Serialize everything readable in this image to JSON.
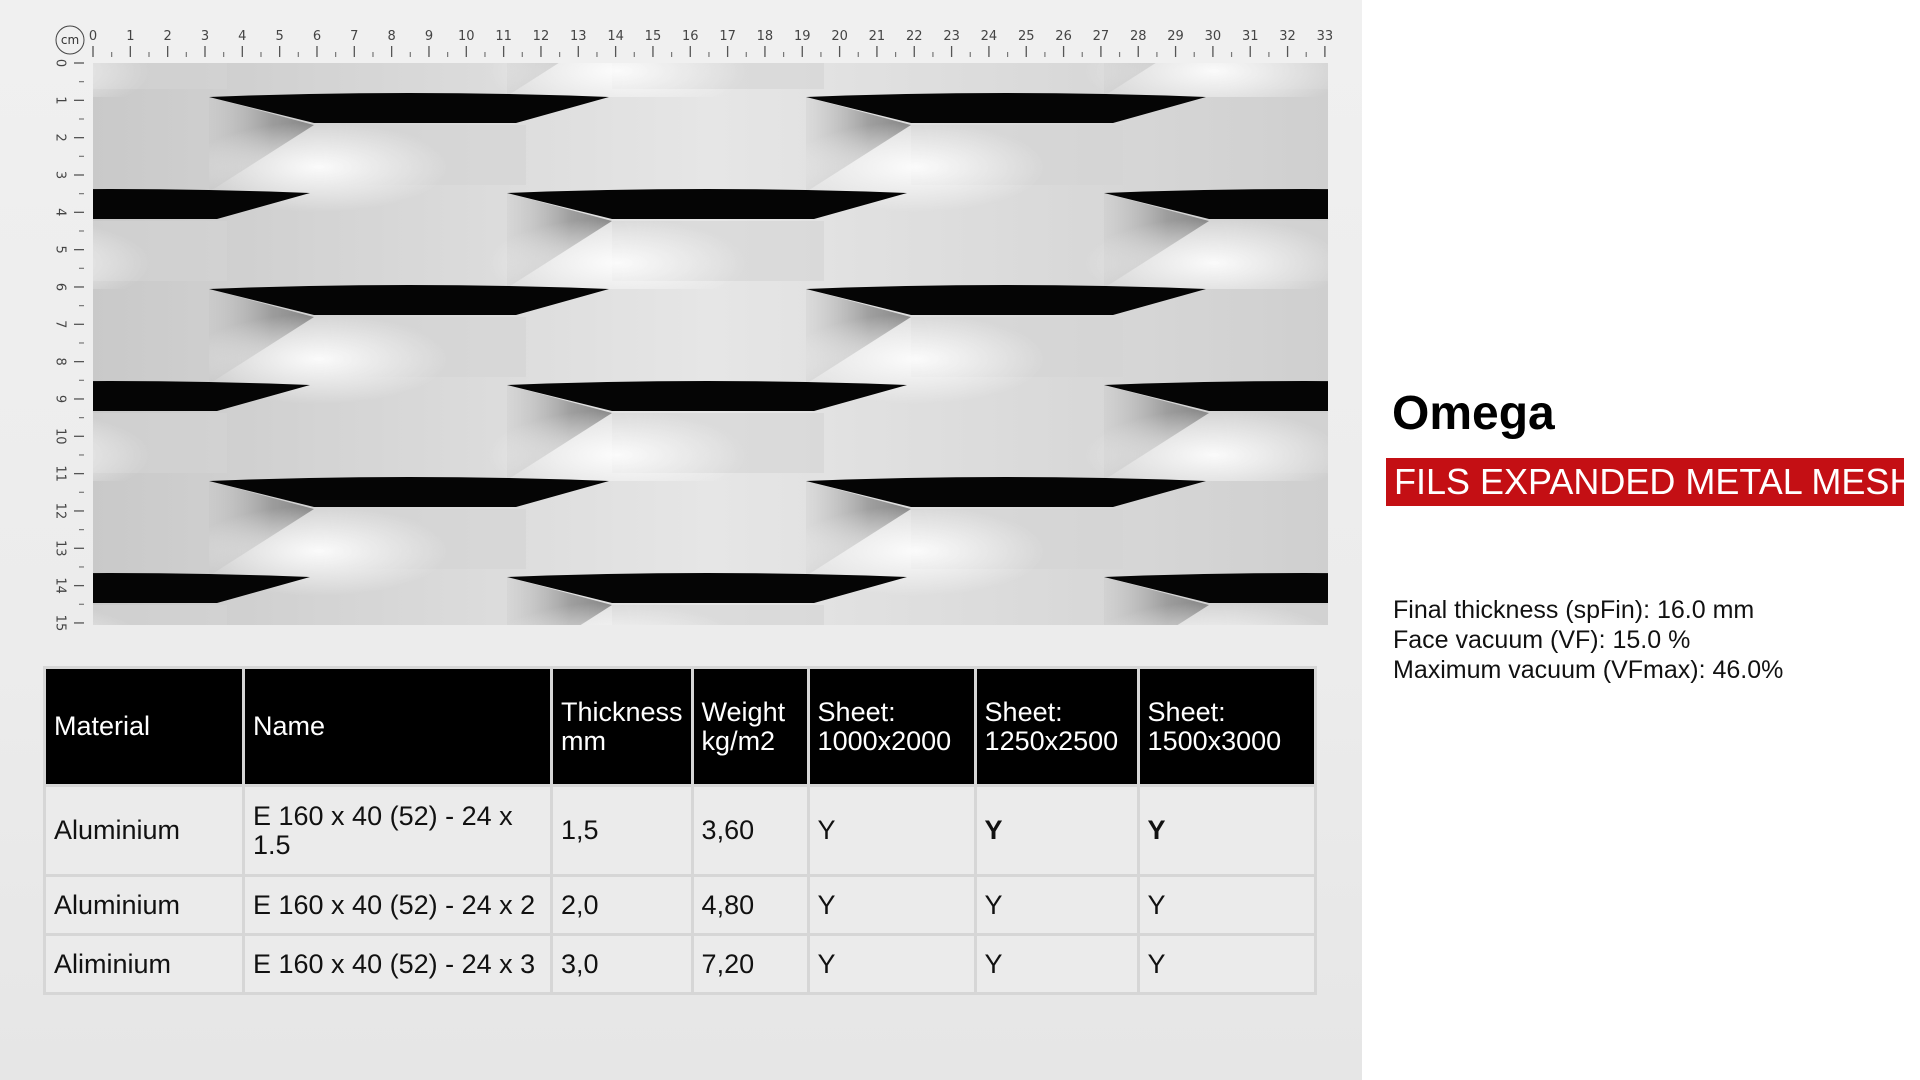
{
  "ruler": {
    "unit": "cm",
    "horizontal_labels": [
      "0",
      "1",
      "2",
      "3",
      "4",
      "5",
      "6",
      "7",
      "8",
      "9",
      "10",
      "11",
      "12",
      "13",
      "14",
      "15",
      "16",
      "17",
      "18",
      "19",
      "20",
      "21",
      "22",
      "23",
      "24",
      "25",
      "26",
      "27",
      "28",
      "29",
      "30",
      "31",
      "32",
      "33"
    ],
    "vertical_labels": [
      "0",
      "1",
      "2",
      "3",
      "4",
      "5",
      "6",
      "7",
      "8",
      "9",
      "10",
      "11",
      "12",
      "13",
      "14",
      "15"
    ]
  },
  "table": {
    "headers": [
      [
        "Material"
      ],
      [
        "Name"
      ],
      [
        "Thickness",
        "mm"
      ],
      [
        "Weight",
        "kg/m2"
      ],
      [
        "Sheet:",
        "1000x2000"
      ],
      [
        "Sheet:",
        "1250x2500"
      ],
      [
        "Sheet:",
        "1500x3000"
      ]
    ],
    "rows": [
      {
        "material": "Aluminium",
        "name": "E 160 x 40 (52) - 24 x 1.5",
        "thickness": "1,5",
        "weight": "3,60",
        "s1": "Y",
        "s2": "Y",
        "s3": "Y"
      },
      {
        "material": "Aluminium",
        "name": "E 160 x 40 (52) - 24 x 2",
        "thickness": "2,0",
        "weight": "4,80",
        "s1": "Y",
        "s2": "Y",
        "s3": "Y"
      },
      {
        "material": "Aliminium",
        "name": "E 160 x 40 (52) - 24 x 3",
        "thickness": "3,0",
        "weight": "7,20",
        "s1": "Y",
        "s2": "Y",
        "s3": "Y"
      }
    ]
  },
  "product": {
    "title": "Omega",
    "badge": "FILS EXPANDED METAL MESH",
    "badge_color": "#c40f14",
    "specs": [
      "Final thickness (spFin): 16.0 mm",
      "Face vacuum (VF): 15.0 %",
      "Maximum vacuum (VFmax): 46.0%"
    ]
  }
}
